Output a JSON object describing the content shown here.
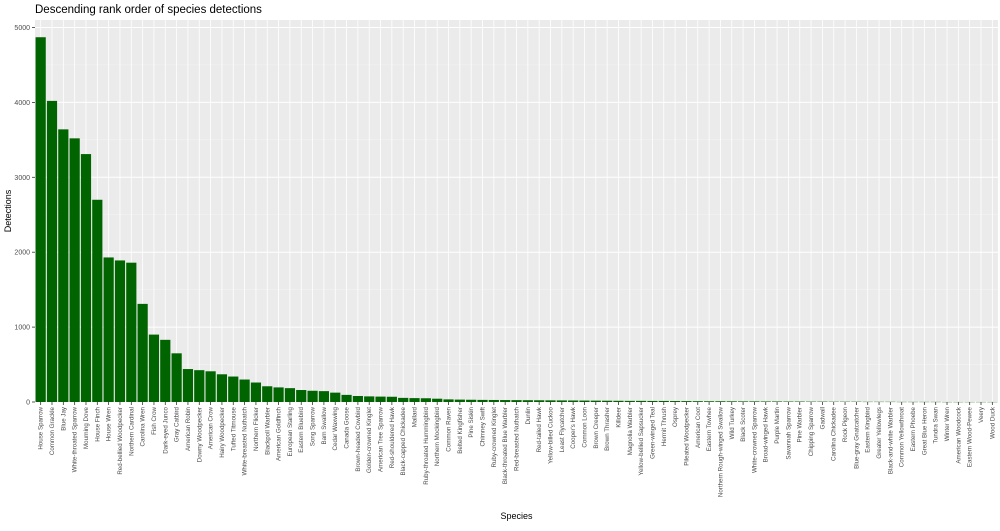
{
  "chart_data": {
    "type": "bar",
    "title": "Descending rank order of species detections",
    "xlabel": "Species",
    "ylabel": "Detections",
    "ylim": [
      0,
      5100
    ],
    "yticks": [
      0,
      1000,
      2000,
      3000,
      4000,
      5000
    ],
    "grid": true,
    "bar_color": "#006400",
    "panel_color": "#EBEBEB",
    "categories": [
      "House Sparrow",
      "Common Grackle",
      "Blue Jay",
      "White-throated Sparrow",
      "Mourning Dove",
      "House Finch",
      "House Wren",
      "Red-bellied Woodpecker",
      "Northern Cardinal",
      "Carolina Wren",
      "Fish Crow",
      "Dark-eyed Junco",
      "Gray Catbird",
      "American Robin",
      "Downy Woodpecker",
      "American Crow",
      "Hairy Woodpecker",
      "Tufted Titmouse",
      "White-breasted Nuthatch",
      "Northern Flicker",
      "Blackpoll Warbler",
      "American Goldfinch",
      "European Starling",
      "Eastern Bluebird",
      "Song Sparrow",
      "Barn Swallow",
      "Cedar Waxwing",
      "Canada Goose",
      "Brown-headed Cowbird",
      "Golden-crowned Kinglet",
      "American Tree Sparrow",
      "Red-shouldered Hawk",
      "Black-capped Chickadee",
      "Mallard",
      "Ruby-throated Hummingbird",
      "Northern Mockingbird",
      "Common Raven",
      "Belted Kingfisher",
      "Pine Siskin",
      "Chimney Swift",
      "Ruby-crowned Kinglet",
      "Black-throated Blue Warbler",
      "Red-breasted Nuthatch",
      "Dunlin",
      "Red-tailed Hawk",
      "Yellow-billed Cuckoo",
      "Least Flycatcher",
      "Cooper's Hawk",
      "Common Loon",
      "Brown Creeper",
      "Brown Thrasher",
      "Killdeer",
      "Magnolia Warbler",
      "Yellow-bellied Sapsucker",
      "Green-winged Teal",
      "Hermit Thrush",
      "Osprey",
      "Pileated Woodpecker",
      "American Coot",
      "Eastern Towhee",
      "Northern Rough-winged Swallow",
      "Wild Turkey",
      "Black Scoter",
      "White-crowned Sparrow",
      "Broad-winged Hawk",
      "Purple Martin",
      "Savannah Sparrow",
      "Pine Warbler",
      "Chipping Sparrow",
      "Gadwall",
      "Carolina Chickadee",
      "Rock Pigeon",
      "Blue-gray Gnatcatcher",
      "Eastern Kingbird",
      "Greater Yellowlegs",
      "Black-and-white Warbler",
      "Common Yellowthroat",
      "Eastern Phoebe",
      "Great Blue Heron",
      "Tundra Swan",
      "Winter Wren",
      "American Woodcock",
      "Eastern Wood-Pewee",
      "Veery",
      "Wood Duck"
    ],
    "values": [
      4870,
      4020,
      3640,
      3520,
      3310,
      2700,
      1930,
      1890,
      1860,
      1310,
      900,
      830,
      650,
      440,
      425,
      410,
      370,
      340,
      300,
      260,
      210,
      195,
      185,
      160,
      150,
      145,
      125,
      95,
      80,
      75,
      72,
      70,
      55,
      52,
      50,
      44,
      35,
      32,
      30,
      28,
      27,
      26,
      25,
      24,
      23,
      22,
      21,
      20,
      19,
      18,
      17,
      16,
      15,
      15,
      14,
      14,
      13,
      12,
      11,
      10,
      10,
      9,
      8,
      8,
      7,
      7,
      6,
      6,
      5,
      5,
      4,
      4,
      4,
      3,
      3,
      3,
      2,
      2,
      2,
      2,
      1,
      1,
      1,
      1,
      1
    ]
  }
}
